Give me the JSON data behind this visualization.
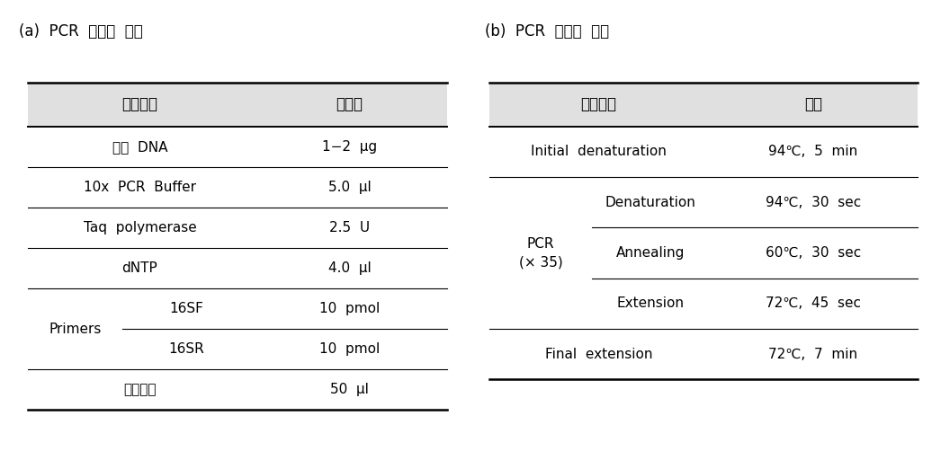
{
  "title_a": "(a)  PCR  반응액  조성",
  "title_b": "(b)  PCR  반응액  조건",
  "header_bg": "#e0e0e0",
  "bg_color": "#ffffff",
  "text_color": "#000000",
  "font_size": 11,
  "title_font_size": 12,
  "table_a": {
    "headers": [
      "반응물질",
      "첨가량"
    ],
    "rows": [
      {
        "col1": "주형  DNA",
        "col2": "1−2  μg",
        "sub": false
      },
      {
        "col1": "10x  PCR  Buffer",
        "col2": "5.0  μl",
        "sub": false
      },
      {
        "col1": "Taq  polymerase",
        "col2": "2.5  U",
        "sub": false
      },
      {
        "col1": "dNTP",
        "col2": "4.0  μl",
        "sub": false
      },
      {
        "col1": "16SF",
        "col2": "10  pmol",
        "sub": true,
        "group": "Primers"
      },
      {
        "col1": "16SR",
        "col2": "10  pmol",
        "sub": true,
        "group": "Primers"
      },
      {
        "col1": "최종부피",
        "col2": "50  μl",
        "sub": false
      }
    ]
  },
  "table_b": {
    "headers": [
      "반응단계",
      "조건"
    ],
    "rows": [
      {
        "col1": "Initial  denaturation",
        "col2": "94℃,  5  min",
        "sub": false
      },
      {
        "col1": "Denaturation",
        "col2": "94℃,  30  sec",
        "sub": true,
        "group": "PCR"
      },
      {
        "col1": "Annealing",
        "col2": "60℃,  30  sec",
        "sub": true,
        "group": "PCR"
      },
      {
        "col1": "Extension",
        "col2": "72℃,  45  sec",
        "sub": true,
        "group": "PCR"
      },
      {
        "col1": "Final  extension",
        "col2": "72℃,  7  min",
        "sub": false
      }
    ]
  }
}
